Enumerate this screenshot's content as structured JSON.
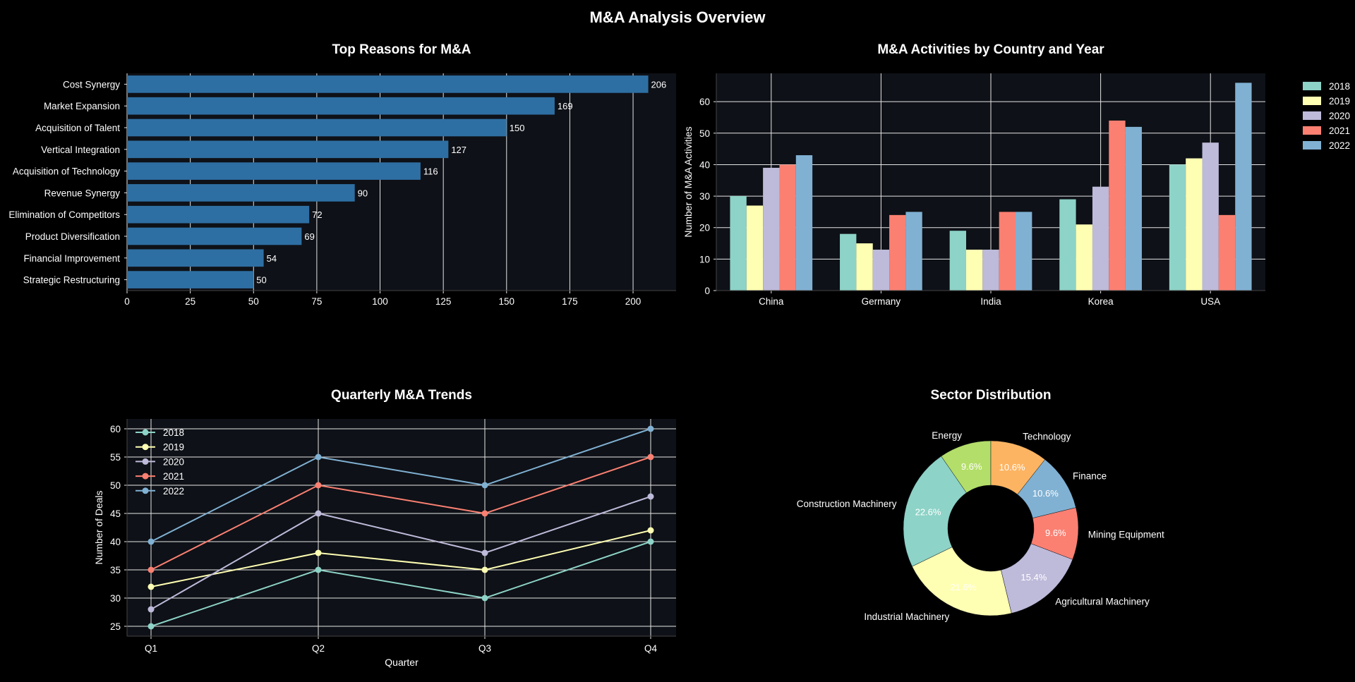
{
  "title": "M&A Analysis Overview",
  "colors": {
    "background": "#000000",
    "plot_background": "#0e1117",
    "grid": "#e6e6e6",
    "bar_blue": "#2e6fa3",
    "palette": [
      "#8dd3c7",
      "#ffffb3",
      "#bebada",
      "#fb8072",
      "#80b1d3",
      "#fdb462",
      "#b3de69"
    ]
  },
  "chart_data": [
    {
      "type": "bar",
      "orientation": "horizontal",
      "title": "Top Reasons for M&A",
      "categories": [
        "Cost Synergy",
        "Market Expansion",
        "Acquisition of Talent",
        "Vertical Integration",
        "Acquisition of Technology",
        "Revenue Synergy",
        "Elimination of Competitors",
        "Product Diversification",
        "Financial Improvement",
        "Strategic Restructuring"
      ],
      "values": [
        206,
        169,
        150,
        127,
        116,
        90,
        72,
        69,
        54,
        50
      ],
      "xlim": [
        0,
        217
      ],
      "xticks": [
        0,
        25,
        50,
        75,
        100,
        125,
        150,
        175,
        200
      ],
      "xlabel": "",
      "ylabel": "",
      "grid": true
    },
    {
      "type": "bar",
      "title": "M&A Activities by Country and Year",
      "categories": [
        "China",
        "Germany",
        "India",
        "Korea",
        "USA"
      ],
      "series": [
        {
          "name": "2018",
          "values": [
            30,
            18,
            19,
            29,
            40
          ]
        },
        {
          "name": "2019",
          "values": [
            27,
            15,
            13,
            21,
            42
          ]
        },
        {
          "name": "2020",
          "values": [
            39,
            13,
            13,
            33,
            47
          ]
        },
        {
          "name": "2021",
          "values": [
            40,
            24,
            25,
            54,
            24
          ]
        },
        {
          "name": "2022",
          "values": [
            43,
            25,
            25,
            52,
            66
          ]
        }
      ],
      "xlabel": "",
      "ylabel": "Number of M&A Activities",
      "ylim": [
        0,
        69
      ],
      "yticks": [
        0,
        10,
        20,
        30,
        40,
        50,
        60
      ],
      "legend": "outside right top",
      "grid": true
    },
    {
      "type": "line",
      "title": "Quarterly M&A Trends",
      "x": [
        "Q1",
        "Q2",
        "Q3",
        "Q4"
      ],
      "series": [
        {
          "name": "2018",
          "values": [
            25,
            35,
            30,
            40
          ]
        },
        {
          "name": "2019",
          "values": [
            32,
            38,
            35,
            42
          ]
        },
        {
          "name": "2020",
          "values": [
            28,
            45,
            38,
            48
          ]
        },
        {
          "name": "2021",
          "values": [
            35,
            50,
            45,
            55
          ]
        },
        {
          "name": "2022",
          "values": [
            40,
            55,
            50,
            60
          ]
        }
      ],
      "xlabel": "Quarter",
      "ylabel": "Number of Deals",
      "ylim": [
        23.25,
        61.75
      ],
      "yticks": [
        25,
        30,
        35,
        40,
        45,
        50,
        55,
        60
      ],
      "legend": "top-left",
      "grid": true
    },
    {
      "type": "pie",
      "donut": true,
      "title": "Sector Distribution",
      "labels": [
        "Energy",
        "Construction Machinery",
        "Industrial Machinery",
        "Agricultural Machinery",
        "Mining Equipment",
        "Finance",
        "Technology"
      ],
      "values": [
        9.6,
        22.6,
        21.6,
        15.4,
        9.6,
        10.6,
        10.6
      ],
      "pct_labels": [
        "9.6%",
        "22.6%",
        "21.6%",
        "15.4%",
        "9.6%",
        "10.6%",
        "10.6%"
      ],
      "colors": [
        "#b3de69",
        "#8dd3c7",
        "#ffffb3",
        "#bebada",
        "#fb8072",
        "#80b1d3",
        "#fdb462"
      ],
      "start_angle": 90,
      "direction": "counterclockwise"
    }
  ]
}
